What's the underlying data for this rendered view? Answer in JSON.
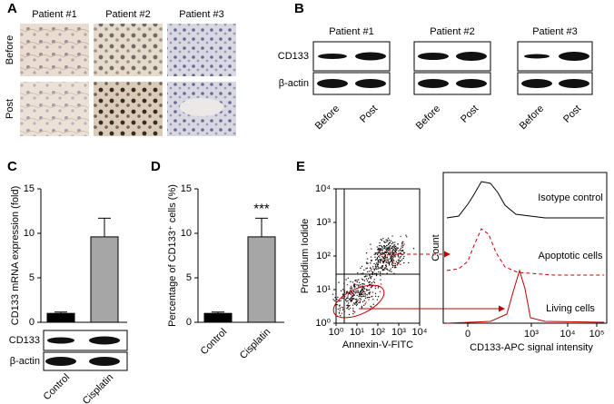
{
  "panel_labels": [
    "A",
    "B",
    "C",
    "D",
    "E"
  ],
  "panel_a": {
    "columns": [
      "Patient #1",
      "Patient #2",
      "Patient #3"
    ],
    "rows": [
      "Before",
      "Post"
    ]
  },
  "panel_b": {
    "columns": [
      "Patient #1",
      "Patient #2",
      "Patient #3"
    ],
    "rows": [
      "CD133",
      "β-actin"
    ],
    "lanes": [
      "Before",
      "Post"
    ]
  },
  "panel_c_blot": {
    "rows": [
      "CD133",
      "β-actin"
    ]
  },
  "chart_data": [
    {
      "type": "bar",
      "y_label": "CD133 mRNA expression (fold)",
      "categories": [
        "Control",
        "Cisplatin"
      ],
      "values": [
        1,
        9.6
      ],
      "errors": [
        0.15,
        2.1
      ],
      "colors": [
        "#000000",
        "#a6a6a6"
      ],
      "ylim": [
        0,
        15
      ],
      "yticks": [
        0,
        5,
        10,
        15
      ]
    },
    {
      "type": "bar",
      "y_label": "Percentage of CD133⁺ cells (%)",
      "categories": [
        "Control",
        "Cisplatin"
      ],
      "values": [
        1,
        9.6
      ],
      "errors": [
        0.15,
        2.1
      ],
      "colors": [
        "#000000",
        "#a6a6a6"
      ],
      "ylim": [
        0,
        15
      ],
      "yticks": [
        0,
        5,
        10,
        15
      ],
      "annotation": "***"
    }
  ],
  "panel_e": {
    "dot_plot": {
      "x_label": "Annexin-V-FITC",
      "y_label": "Propidium Iodide",
      "xticks": [
        "10⁰",
        "10¹",
        "10²",
        "10³",
        "10⁴"
      ],
      "yticks": [
        "10⁰",
        "10¹",
        "10²",
        "10³",
        "10⁴"
      ]
    },
    "histogram": {
      "x_label": "CD133-APC signal intensity",
      "y_label": "Count",
      "xticks": [
        "0",
        "10³",
        "10⁴",
        "10⁵"
      ],
      "curves": [
        "Isotype control",
        "Apoptotic cells",
        "Living cells"
      ]
    }
  }
}
